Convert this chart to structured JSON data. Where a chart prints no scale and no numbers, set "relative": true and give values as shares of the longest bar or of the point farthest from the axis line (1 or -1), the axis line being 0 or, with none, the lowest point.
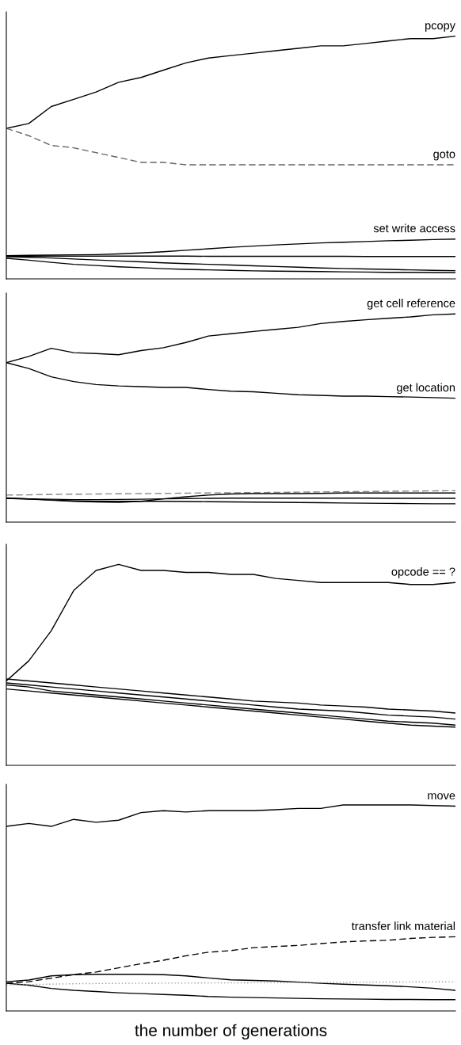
{
  "chart_data": [
    {
      "type": "line",
      "relative": true,
      "tick_labels": false,
      "grid": false,
      "legend": false,
      "categories": [
        null,
        null,
        null,
        null,
        null,
        null,
        null,
        null,
        null,
        null,
        null,
        null,
        null,
        null,
        null,
        null,
        null,
        null,
        null,
        null,
        null
      ],
      "series": [
        {
          "name": "pcopy",
          "color": "#000000",
          "values": [
            0.62,
            0.64,
            0.71,
            0.74,
            0.77,
            0.81,
            0.83,
            0.86,
            0.89,
            0.91,
            0.92,
            0.93,
            0.94,
            0.95,
            0.96,
            0.96,
            0.97,
            0.98,
            0.99,
            0.99,
            1.0
          ]
        },
        {
          "name": "goto",
          "color": "#666666",
          "line_style": "dashed",
          "values": [
            0.62,
            0.59,
            0.55,
            0.54,
            0.52,
            0.5,
            0.48,
            0.48,
            0.47,
            0.47,
            0.47,
            0.47,
            0.47,
            0.47,
            0.47,
            0.47,
            0.47,
            0.47,
            0.47,
            0.47,
            0.47
          ]
        },
        {
          "name": "set write access",
          "color": "#000000",
          "values": [
            0.096,
            0.097,
            0.098,
            0.099,
            0.1,
            0.103,
            0.107,
            0.112,
            0.118,
            0.124,
            0.13,
            0.135,
            0.14,
            0.144,
            0.148,
            0.151,
            0.154,
            0.157,
            0.159,
            0.162,
            0.164
          ]
        },
        {
          "color": "#000000",
          "values": [
            0.094,
            0.094,
            0.094,
            0.094,
            0.094,
            0.094,
            0.094,
            0.094,
            0.094,
            0.093,
            0.093,
            0.093,
            0.093,
            0.093,
            0.093,
            0.093,
            0.092,
            0.092,
            0.092,
            0.092,
            0.092
          ]
        },
        {
          "color": "#000000",
          "values": [
            0.091,
            0.089,
            0.086,
            0.082,
            0.078,
            0.074,
            0.07,
            0.066,
            0.063,
            0.06,
            0.057,
            0.054,
            0.051,
            0.048,
            0.045,
            0.043,
            0.041,
            0.039,
            0.037,
            0.035,
            0.034
          ]
        },
        {
          "color": "#000000",
          "values": [
            0.085,
            0.077,
            0.068,
            0.06,
            0.055,
            0.05,
            0.046,
            0.042,
            0.039,
            0.037,
            0.035,
            0.033,
            0.032,
            0.031,
            0.03,
            0.029,
            0.028,
            0.027,
            0.027,
            0.026,
            0.026
          ]
        }
      ]
    },
    {
      "type": "line",
      "relative": true,
      "tick_labels": false,
      "grid": false,
      "legend": false,
      "categories": [
        null,
        null,
        null,
        null,
        null,
        null,
        null,
        null,
        null,
        null,
        null,
        null,
        null,
        null,
        null,
        null,
        null,
        null,
        null,
        null,
        null
      ],
      "series": [
        {
          "name": "get cell reference",
          "color": "#000000",
          "values": [
            0.766,
            0.796,
            0.835,
            0.814,
            0.81,
            0.804,
            0.824,
            0.838,
            0.863,
            0.894,
            0.905,
            0.916,
            0.926,
            0.936,
            0.954,
            0.964,
            0.972,
            0.979,
            0.986,
            0.996,
            1.0
          ]
        },
        {
          "name": "get location",
          "color": "#000000",
          "values": [
            0.766,
            0.738,
            0.698,
            0.675,
            0.661,
            0.654,
            0.651,
            0.647,
            0.647,
            0.637,
            0.629,
            0.626,
            0.619,
            0.612,
            0.609,
            0.605,
            0.605,
            0.603,
            0.601,
            0.598,
            0.595
          ]
        },
        {
          "color": "#888888",
          "line_style": "dashed",
          "values": [
            0.13,
            0.131,
            0.133,
            0.134,
            0.135,
            0.136,
            0.137,
            0.138,
            0.139,
            0.14,
            0.141,
            0.142,
            0.143,
            0.144,
            0.145,
            0.146,
            0.147,
            0.148,
            0.149,
            0.15,
            0.151
          ]
        },
        {
          "color": "#000000",
          "values": [
            0.116,
            0.112,
            0.105,
            0.1,
            0.097,
            0.095,
            0.1,
            0.112,
            0.122,
            0.13,
            0.135,
            0.137,
            0.137,
            0.137,
            0.138,
            0.14,
            0.14,
            0.14,
            0.14,
            0.14,
            0.14
          ]
        },
        {
          "color": "#000000",
          "values": [
            0.114,
            0.112,
            0.11,
            0.108,
            0.108,
            0.109,
            0.11,
            0.112,
            0.113,
            0.114,
            0.115,
            0.115,
            0.115,
            0.115,
            0.115,
            0.115,
            0.115,
            0.114,
            0.114,
            0.114,
            0.114
          ]
        },
        {
          "color": "#000000",
          "values": [
            0.114,
            0.11,
            0.106,
            0.102,
            0.1,
            0.1,
            0.1,
            0.1,
            0.099,
            0.098,
            0.097,
            0.096,
            0.095,
            0.094,
            0.093,
            0.092,
            0.091,
            0.09,
            0.089,
            0.088,
            0.088
          ]
        }
      ]
    },
    {
      "type": "line",
      "relative": true,
      "tick_labels": false,
      "grid": false,
      "legend": false,
      "categories": [
        null,
        null,
        null,
        null,
        null,
        null,
        null,
        null,
        null,
        null,
        null,
        null,
        null,
        null,
        null,
        null,
        null,
        null,
        null,
        null,
        null
      ],
      "series": [
        {
          "name": "opcode == ?",
          "color": "#000000",
          "values": [
            0.42,
            0.52,
            0.67,
            0.87,
            0.97,
            1.0,
            0.97,
            0.97,
            0.96,
            0.96,
            0.95,
            0.95,
            0.93,
            0.92,
            0.91,
            0.91,
            0.91,
            0.91,
            0.9,
            0.9,
            0.91
          ]
        },
        {
          "color": "#000000",
          "values": [
            0.43,
            0.42,
            0.41,
            0.4,
            0.39,
            0.38,
            0.37,
            0.36,
            0.35,
            0.34,
            0.33,
            0.32,
            0.315,
            0.31,
            0.3,
            0.295,
            0.29,
            0.28,
            0.275,
            0.27,
            0.26
          ]
        },
        {
          "color": "#000000",
          "values": [
            0.41,
            0.4,
            0.39,
            0.38,
            0.37,
            0.36,
            0.35,
            0.34,
            0.33,
            0.32,
            0.31,
            0.3,
            0.29,
            0.28,
            0.275,
            0.27,
            0.26,
            0.25,
            0.245,
            0.24,
            0.23
          ]
        },
        {
          "color": "#000000",
          "values": [
            0.4,
            0.39,
            0.37,
            0.36,
            0.35,
            0.34,
            0.33,
            0.32,
            0.31,
            0.3,
            0.29,
            0.28,
            0.27,
            0.26,
            0.25,
            0.24,
            0.23,
            0.22,
            0.215,
            0.21,
            0.2
          ]
        },
        {
          "color": "#000000",
          "values": [
            0.38,
            0.37,
            0.36,
            0.35,
            0.34,
            0.33,
            0.32,
            0.31,
            0.3,
            0.29,
            0.28,
            0.27,
            0.26,
            0.25,
            0.24,
            0.23,
            0.22,
            0.21,
            0.2,
            0.195,
            0.19
          ]
        }
      ]
    },
    {
      "type": "line",
      "relative": true,
      "tick_labels": false,
      "grid": false,
      "legend": false,
      "xlabel": "the number of generations",
      "categories": [
        null,
        null,
        null,
        null,
        null,
        null,
        null,
        null,
        null,
        null,
        null,
        null,
        null,
        null,
        null,
        null,
        null,
        null,
        null,
        null,
        null
      ],
      "series": [
        {
          "name": "move",
          "color": "#000000",
          "values": [
            0.896,
            0.91,
            0.896,
            0.93,
            0.916,
            0.926,
            0.963,
            0.972,
            0.966,
            0.972,
            0.972,
            0.972,
            0.977,
            0.983,
            0.983,
            1.0,
            1.0,
            1.0,
            1.0,
            0.997,
            0.994
          ]
        },
        {
          "name": "transfer link material",
          "color": "#000000",
          "line_style": "dashed",
          "values": [
            0.134,
            0.142,
            0.159,
            0.176,
            0.189,
            0.209,
            0.229,
            0.246,
            0.268,
            0.285,
            0.293,
            0.307,
            0.313,
            0.318,
            0.327,
            0.335,
            0.34,
            0.343,
            0.352,
            0.357,
            0.36
          ]
        },
        {
          "color": "#000000",
          "values": [
            0.142,
            0.15,
            0.17,
            0.176,
            0.178,
            0.178,
            0.178,
            0.176,
            0.17,
            0.16,
            0.151,
            0.148,
            0.145,
            0.14,
            0.134,
            0.13,
            0.126,
            0.122,
            0.117,
            0.11,
            0.1
          ]
        },
        {
          "color": "#000000",
          "values": [
            0.134,
            0.125,
            0.109,
            0.1,
            0.094,
            0.088,
            0.084,
            0.08,
            0.076,
            0.07,
            0.067,
            0.065,
            0.063,
            0.061,
            0.059,
            0.058,
            0.057,
            0.056,
            0.056,
            0.055,
            0.055
          ]
        },
        {
          "color": "#999999",
          "line_style": "dotted",
          "values": [
            0.126,
            0.128,
            0.13,
            0.132,
            0.133,
            0.134,
            0.134,
            0.135,
            0.135,
            0.136,
            0.136,
            0.137,
            0.137,
            0.138,
            0.138,
            0.139,
            0.14,
            0.14,
            0.141,
            0.141,
            0.142
          ]
        }
      ]
    }
  ]
}
